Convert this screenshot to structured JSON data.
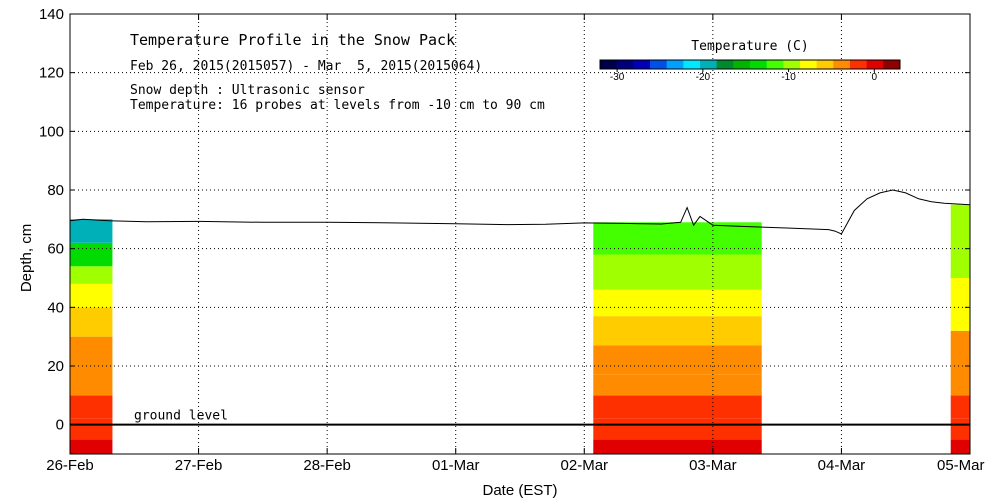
{
  "chart_data": {
    "type": "heatmap",
    "title": "Temperature Profile in the Snow Pack",
    "subtitle": "Feb 26, 2015(2015057) - Mar  5, 2015(2015064)",
    "notes": [
      "Snow depth : Ultrasonic sensor",
      "Temperature: 16 probes at levels from -10 cm to 90 cm"
    ],
    "xlabel": "Date (EST)",
    "ylabel": "Depth, cm",
    "x_start": "26-Feb",
    "xlim": [
      0,
      7
    ],
    "ylim": [
      -10,
      140
    ],
    "x_ticks": [
      0,
      1,
      2,
      3,
      4,
      5,
      6,
      7
    ],
    "x_tick_labels": [
      "26-Feb",
      "27-Feb",
      "28-Feb",
      "01-Mar",
      "02-Mar",
      "03-Mar",
      "04-Mar",
      "05-Mar"
    ],
    "y_ticks": [
      0,
      20,
      40,
      60,
      80,
      100,
      120,
      140
    ],
    "y_tick_labels": [
      "0",
      "20",
      "40",
      "60",
      "80",
      "100",
      "120",
      "140"
    ],
    "grid": true,
    "ground_level_label": "ground level",
    "ground_level": 0,
    "colorbar": {
      "label": "Temperature (C)",
      "min": -32,
      "max": 3,
      "ticks": [
        -30,
        -20,
        -10,
        0
      ],
      "tick_labels": [
        "-30",
        "-20",
        "-10",
        "0"
      ],
      "colors": [
        "#00004a",
        "#00007a",
        "#0000b8",
        "#0050e8",
        "#00a0ff",
        "#00e8ff",
        "#00b0b8",
        "#008a2e",
        "#00b400",
        "#00dc00",
        "#44ff00",
        "#a0ff00",
        "#ffff00",
        "#ffcc00",
        "#ff8c00",
        "#ff3000",
        "#e00000",
        "#900000"
      ]
    },
    "snow_depth": {
      "x": [
        0,
        0.1,
        0.3,
        0.6,
        1.0,
        1.5,
        2.0,
        2.5,
        3.0,
        3.4,
        3.7,
        4.0,
        4.3,
        4.6,
        4.75,
        4.8,
        4.85,
        4.9,
        5.0,
        5.3,
        5.6,
        5.9,
        5.95,
        6.0,
        6.1,
        6.2,
        6.3,
        6.4,
        6.5,
        6.6,
        6.7,
        6.8,
        7.0
      ],
      "y": [
        69.5,
        70,
        69.5,
        69.2,
        69.3,
        69,
        69,
        68.8,
        68.5,
        68.2,
        68.3,
        68.8,
        68.6,
        68.4,
        69,
        74,
        68,
        71,
        68,
        67.5,
        67,
        66.5,
        66,
        65,
        73,
        77,
        79,
        80,
        79,
        77,
        76,
        75.5,
        75
      ]
    },
    "profiles": [
      {
        "x_range": [
          0,
          0.33
        ],
        "layers": [
          {
            "range": [
              -10,
              -5
            ],
            "temperature": 0
          },
          {
            "range": [
              -5,
              2
            ],
            "temperature": -1
          },
          {
            "range": [
              2,
              10
            ],
            "temperature": -2
          },
          {
            "range": [
              10,
              20
            ],
            "temperature": -3
          },
          {
            "range": [
              20,
              30
            ],
            "temperature": -4
          },
          {
            "range": [
              30,
              40
            ],
            "temperature": -6
          },
          {
            "range": [
              40,
              48
            ],
            "temperature": -8
          },
          {
            "range": [
              48,
              54
            ],
            "temperature": -10
          },
          {
            "range": [
              54,
              62
            ],
            "temperature": -14
          },
          {
            "range": [
              62,
              70
            ],
            "temperature": -19
          }
        ]
      },
      {
        "x_range": [
          4.07,
          5.38
        ],
        "layers": [
          {
            "range": [
              -10,
              -5
            ],
            "temperature": 0
          },
          {
            "range": [
              -5,
              2
            ],
            "temperature": -1
          },
          {
            "range": [
              2,
              10
            ],
            "temperature": -2
          },
          {
            "range": [
              10,
              17
            ],
            "temperature": -3
          },
          {
            "range": [
              17,
              27
            ],
            "temperature": -4
          },
          {
            "range": [
              27,
              37
            ],
            "temperature": -6
          },
          {
            "range": [
              37,
              46
            ],
            "temperature": -8
          },
          {
            "range": [
              46,
              58
            ],
            "temperature": -9
          },
          {
            "range": [
              58,
              69
            ],
            "temperature": -11
          }
        ]
      },
      {
        "x_range": [
          6.85,
          7.0
        ],
        "layers": [
          {
            "range": [
              -10,
              -5
            ],
            "temperature": 0
          },
          {
            "range": [
              -5,
              2
            ],
            "temperature": -1
          },
          {
            "range": [
              2,
              10
            ],
            "temperature": -2
          },
          {
            "range": [
              10,
              20
            ],
            "temperature": -3
          },
          {
            "range": [
              20,
              32
            ],
            "temperature": -4
          },
          {
            "range": [
              32,
              50
            ],
            "temperature": -8
          },
          {
            "range": [
              50,
              75
            ],
            "temperature": -9
          }
        ]
      }
    ]
  }
}
